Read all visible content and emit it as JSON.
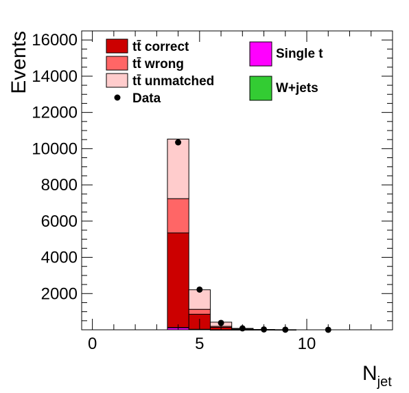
{
  "chart_data": {
    "type": "bar",
    "stacked": true,
    "xlabel_main": "N",
    "xlabel_sub": "jet",
    "ylabel": "Events",
    "xlim": [
      -0.5,
      14.0
    ],
    "ylim": [
      0,
      16500
    ],
    "x_ticks": [
      "0",
      "5",
      "10"
    ],
    "y_ticks": [
      "2000",
      "4000",
      "6000",
      "8000",
      "10000",
      "12000",
      "14000",
      "16000"
    ],
    "bins": [
      {
        "low": 3.5,
        "high": 4.5
      },
      {
        "low": 4.5,
        "high": 5.5
      },
      {
        "low": 5.5,
        "high": 6.5
      },
      {
        "low": 6.5,
        "high": 7.5
      },
      {
        "low": 7.5,
        "high": 8.5
      },
      {
        "low": 8.5,
        "high": 9.5
      },
      {
        "low": 9.5,
        "high": 10.5
      },
      {
        "low": 10.5,
        "high": 11.5
      }
    ],
    "series": [
      {
        "key": "singlet",
        "name": "Single t",
        "color": "#ff00ff",
        "values": [
          110,
          25,
          5,
          1,
          0,
          0,
          0,
          0
        ]
      },
      {
        "key": "wjets",
        "name": "W+jets",
        "color": "#33cc33",
        "values": [
          20,
          5,
          1,
          0,
          0,
          0,
          0,
          0
        ]
      },
      {
        "key": "correct",
        "name": "tt̄ correct",
        "color": "#cc0000",
        "values": [
          5220,
          830,
          130,
          25,
          5,
          1,
          0,
          0
        ]
      },
      {
        "key": "wrong",
        "name": "tt̄ wrong",
        "color": "#ff6666",
        "values": [
          1890,
          270,
          55,
          12,
          3,
          1,
          0,
          0
        ]
      },
      {
        "key": "unmatched",
        "name": "tt̄ unmatched",
        "color": "#ffcccc",
        "values": [
          3290,
          1080,
          230,
          40,
          10,
          2,
          0,
          0
        ]
      }
    ],
    "data_points": {
      "name": "Data",
      "x": [
        4,
        5,
        6,
        7,
        8,
        9,
        11
      ],
      "y": [
        10350,
        2220,
        380,
        80,
        20,
        5,
        2
      ]
    },
    "legend": {
      "left_column": [
        {
          "key": "correct",
          "label": "tt̄ correct",
          "style": "box",
          "color": "#cc0000"
        },
        {
          "key": "wrong",
          "label": "tt̄ wrong",
          "style": "box",
          "color": "#ff6666"
        },
        {
          "key": "unmatched",
          "label": "tt̄ unmatched",
          "style": "box",
          "color": "#ffcccc"
        },
        {
          "key": "data",
          "label": "Data",
          "style": "marker",
          "color": "#000000"
        }
      ],
      "right_column": [
        {
          "key": "singlet",
          "label": "Single t",
          "style": "box",
          "color": "#ff00ff"
        },
        {
          "key": "wjets",
          "label": "W+jets",
          "style": "box",
          "color": "#33cc33"
        }
      ],
      "placement": "top"
    },
    "grid": false
  }
}
